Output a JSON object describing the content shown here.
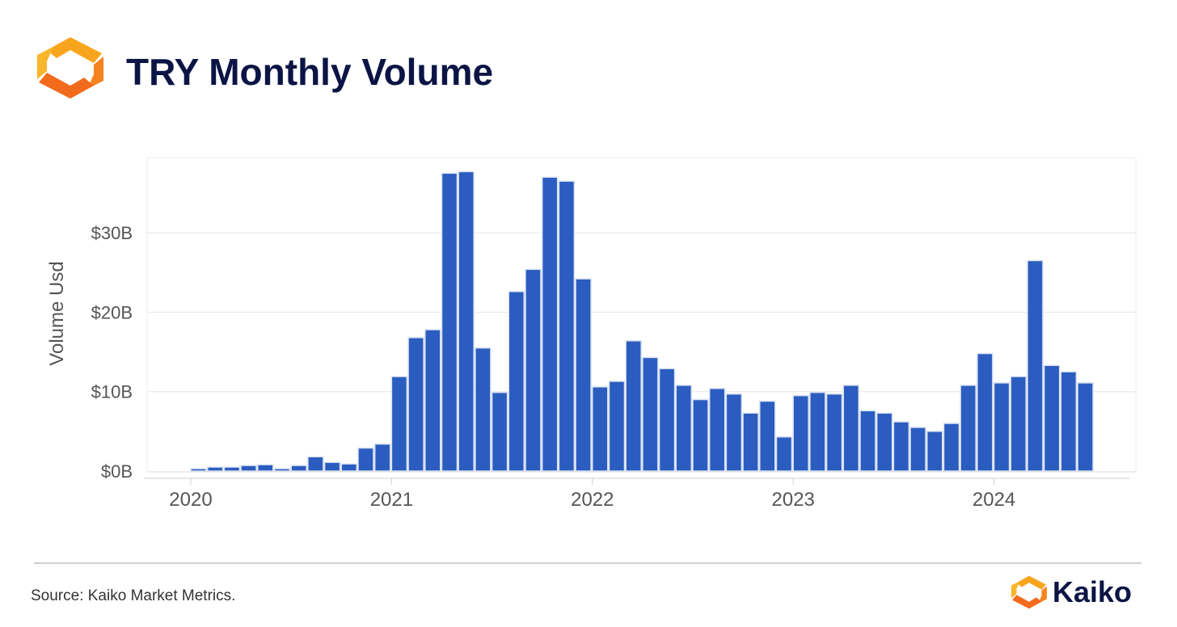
{
  "header": {
    "title": "TRY Monthly Volume"
  },
  "footer": {
    "source": "Source: Kaiko Market Metrics.",
    "brand": "Kaiko"
  },
  "colors": {
    "bar": "#2b5cbf",
    "bar_edge": "#d9e2f3",
    "title": "#0b1444",
    "brand_orange": "#f79a1f",
    "brand_orange_dark": "#f26b1d",
    "grid": "#e6e6e6",
    "axis_text": "#555555"
  },
  "chart_data": {
    "type": "bar",
    "title": "TRY Monthly Volume",
    "xlabel": "",
    "ylabel": "Volume Usd",
    "ylim": [
      0,
      38
    ],
    "y_unit": "$B",
    "yticks": [
      0,
      10,
      20,
      30
    ],
    "ytick_labels": [
      "$0B",
      "$10B",
      "$20B",
      "$30B"
    ],
    "xticks": [
      "2020",
      "2021",
      "2022",
      "2023",
      "2024"
    ],
    "grid": true,
    "categories": [
      "2020-01",
      "2020-02",
      "2020-03",
      "2020-04",
      "2020-05",
      "2020-06",
      "2020-07",
      "2020-08",
      "2020-09",
      "2020-10",
      "2020-11",
      "2020-12",
      "2021-01",
      "2021-02",
      "2021-03",
      "2021-04",
      "2021-05",
      "2021-06",
      "2021-07",
      "2021-08",
      "2021-09",
      "2021-10",
      "2021-11",
      "2021-12",
      "2022-01",
      "2022-02",
      "2022-03",
      "2022-04",
      "2022-05",
      "2022-06",
      "2022-07",
      "2022-08",
      "2022-09",
      "2022-10",
      "2022-11",
      "2022-12",
      "2023-01",
      "2023-02",
      "2023-03",
      "2023-04",
      "2023-05",
      "2023-06",
      "2023-07",
      "2023-08",
      "2023-09",
      "2023-10",
      "2023-11",
      "2023-12",
      "2024-01",
      "2024-02",
      "2024-03",
      "2024-04",
      "2024-05",
      "2024-06"
    ],
    "values": [
      0.3,
      0.5,
      0.5,
      0.7,
      0.8,
      0.3,
      0.7,
      1.8,
      1.1,
      0.9,
      2.9,
      3.4,
      11.9,
      16.8,
      17.8,
      37.5,
      37.7,
      15.5,
      9.9,
      22.6,
      25.4,
      37.0,
      36.5,
      24.2,
      10.6,
      11.3,
      16.4,
      14.3,
      12.9,
      10.8,
      9.0,
      10.4,
      9.7,
      7.3,
      8.8,
      4.3,
      9.5,
      9.9,
      9.7,
      10.8,
      7.6,
      7.3,
      6.2,
      5.5,
      5.0,
      6.0,
      10.8,
      14.8,
      11.1,
      11.9,
      26.5,
      13.3,
      12.5,
      11.1
    ]
  }
}
